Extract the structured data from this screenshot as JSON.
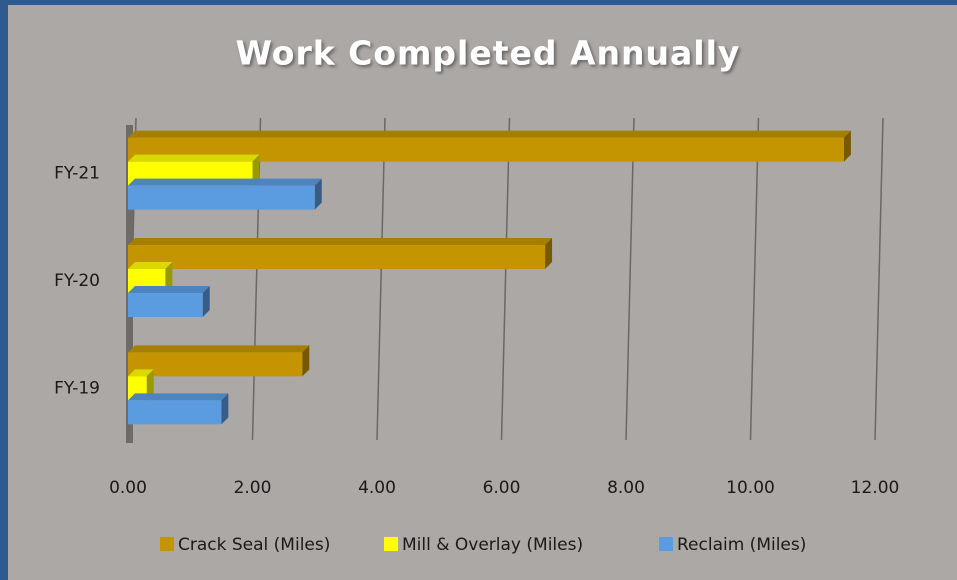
{
  "chart_data": {
    "type": "bar",
    "orientation": "horizontal",
    "title": "Work Completed Annually",
    "categories": [
      "FY-19",
      "FY-20",
      "FY-21"
    ],
    "series": [
      {
        "name": "Crack Seal (Miles)",
        "color": "#c49500",
        "values": [
          2.8,
          6.7,
          11.5
        ]
      },
      {
        "name": "Mill & Overlay (Miles)",
        "color": "#ffff00",
        "values": [
          0.3,
          0.6,
          2.0
        ]
      },
      {
        "name": "Reclaim (Miles)",
        "color": "#5b9be0",
        "values": [
          1.5,
          1.2,
          3.0
        ]
      }
    ],
    "xlim": [
      0,
      12
    ],
    "xticks": [
      {
        "value": 0,
        "label": "0.00"
      },
      {
        "value": 2,
        "label": "2.00"
      },
      {
        "value": 4,
        "label": "4.00"
      },
      {
        "value": 6,
        "label": "6.00"
      },
      {
        "value": 8,
        "label": "8.00"
      },
      {
        "value": 10,
        "label": "10.00"
      },
      {
        "value": 12,
        "label": "12.00"
      }
    ],
    "grid": true,
    "legend": "bottom"
  }
}
